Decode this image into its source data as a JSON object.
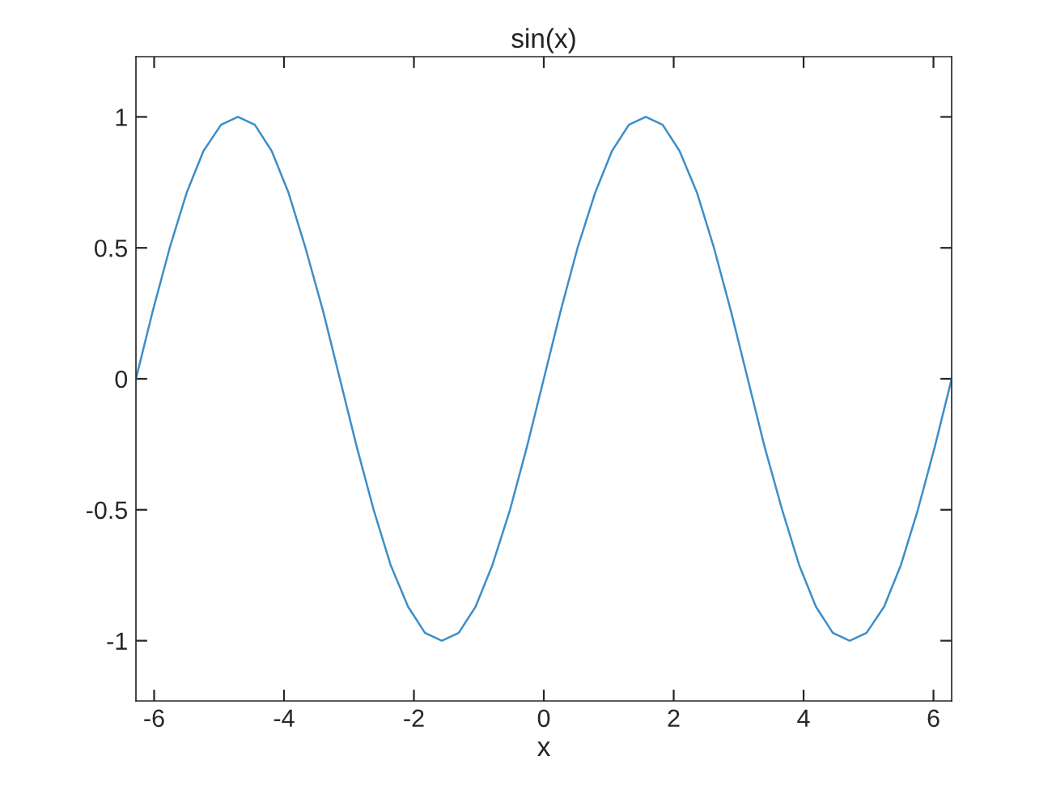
{
  "chart_data": {
    "type": "line",
    "title": "sin(x)",
    "xlabel": "x",
    "x": [
      -6.28,
      -6.02,
      -5.76,
      -5.5,
      -5.24,
      -4.97,
      -4.71,
      -4.45,
      -4.19,
      -3.93,
      -3.67,
      -3.4,
      -3.14,
      -2.88,
      -2.62,
      -2.36,
      -2.09,
      -1.83,
      -1.57,
      -1.31,
      -1.05,
      -0.79,
      -0.52,
      -0.26,
      0,
      0.26,
      0.52,
      0.79,
      1.05,
      1.31,
      1.57,
      1.83,
      2.09,
      2.36,
      2.62,
      2.88,
      3.14,
      3.4,
      3.67,
      3.93,
      4.19,
      4.45,
      4.71,
      4.97,
      5.24,
      5.5,
      5.76,
      6.02,
      6.28
    ],
    "series": [
      {
        "color": "#3d8ec9",
        "values": [
          0,
          0.26,
          0.5,
          0.71,
          0.87,
          0.97,
          1,
          0.97,
          0.87,
          0.71,
          0.5,
          0.26,
          0,
          -0.26,
          -0.5,
          -0.71,
          -0.87,
          -0.97,
          -1,
          -0.97,
          -0.87,
          -0.71,
          -0.5,
          -0.26,
          0,
          0.26,
          0.5,
          0.71,
          0.87,
          0.97,
          1,
          0.97,
          0.87,
          0.71,
          0.5,
          0.26,
          0,
          -0.26,
          -0.5,
          -0.71,
          -0.87,
          -0.97,
          -1,
          -0.97,
          -0.87,
          -0.71,
          -0.5,
          -0.26,
          0
        ]
      }
    ],
    "xlim": [
      -6.28,
      6.28
    ],
    "ylim": [
      -1.23,
      1.23
    ],
    "xticks": [
      -6,
      -4,
      -2,
      0,
      2,
      4,
      6
    ],
    "yticks": [
      -1,
      -0.5,
      0,
      0.5,
      1
    ],
    "grid": false,
    "marker": "none",
    "line_style": "solid"
  }
}
